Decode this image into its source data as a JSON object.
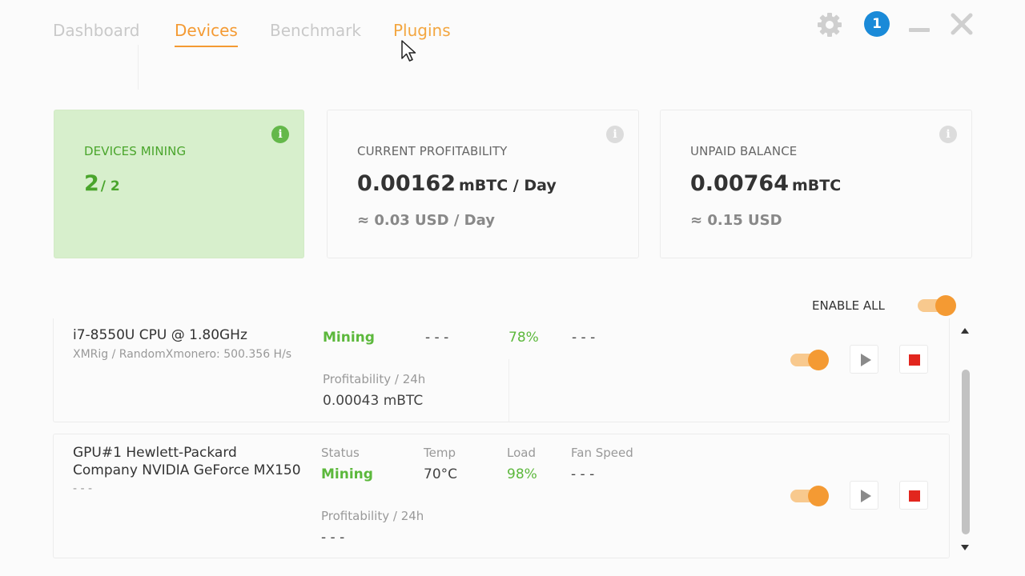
{
  "nav": {
    "tabs": [
      {
        "label": "Dashboard",
        "state": "inactive"
      },
      {
        "label": "Devices",
        "state": "active"
      },
      {
        "label": "Benchmark",
        "state": "inactive"
      },
      {
        "label": "Plugins",
        "state": "hover"
      }
    ],
    "notification_count": "1",
    "icons": [
      "gear-icon",
      "notification-badge",
      "minimize-icon",
      "close-icon"
    ]
  },
  "summary": {
    "devices_mining": {
      "label": "DEVICES MINING",
      "value": "2",
      "total": "/ 2"
    },
    "profitability": {
      "label": "CURRENT PROFITABILITY",
      "value": "0.00162",
      "unit": "mBTC / Day",
      "usd": "≈ 0.03 USD / Day"
    },
    "balance": {
      "label": "UNPAID BALANCE",
      "value": "0.00764",
      "unit": "mBTC",
      "usd": "≈ 0.15 USD"
    }
  },
  "enable_all": {
    "label": "ENABLE ALL",
    "enabled": true
  },
  "columns": {
    "status": "Status",
    "temp": "Temp",
    "load": "Load",
    "fan": "Fan Speed",
    "profit": "Profitability / 24h"
  },
  "devices": [
    {
      "name_line1": "i7-8550U CPU @ 1.80GHz",
      "sub": "XMRig / RandomXmonero: 500.356 H/s",
      "status": "Mining",
      "temp": "- - -",
      "load": "78%",
      "fan": "- - -",
      "profit": "0.00043 mBTC",
      "enabled": true
    },
    {
      "name_line1": "GPU#1 Hewlett-Packard",
      "name_line2": "Company NVIDIA GeForce MX150",
      "sub": "- - -",
      "status": "Mining",
      "temp": "70°C",
      "load": "98%",
      "fan": "- - -",
      "profit": "- - -",
      "enabled": true
    }
  ],
  "colors": {
    "accent": "#f49a33",
    "mining_green": "#5cb83c",
    "card_green": "#d7efcc",
    "badge_blue": "#1a8ad8",
    "stop_red": "#e2261e"
  }
}
